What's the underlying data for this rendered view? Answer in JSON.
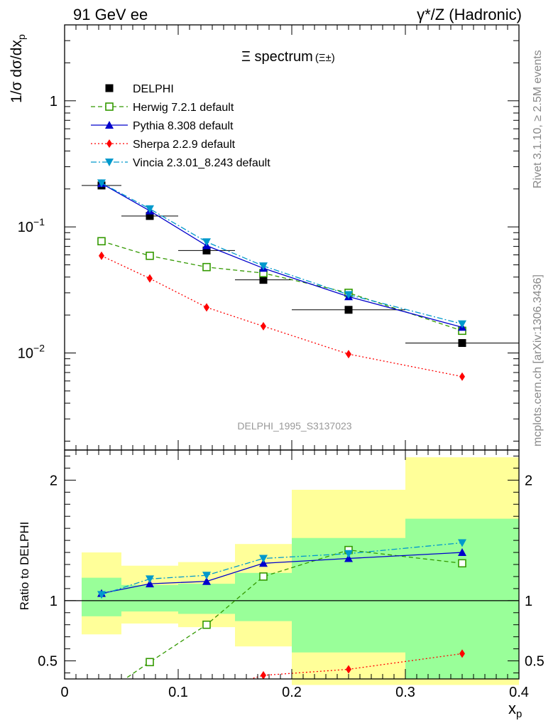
{
  "header": {
    "left": "91 GeV ee",
    "right": "γ*/Z (Hadronic)"
  },
  "side_labels": {
    "rivet": "Rivet 3.1.10, ≥ 2.5M events",
    "mcplots": "mcplots.cern.ch [arXiv:1306.3436]"
  },
  "chart_data": [
    {
      "type": "scatter",
      "panel": "main",
      "title": "Ξ spectrum",
      "title_suffix": "(Ξ±)",
      "ylabel": "1/σ dσ/dx",
      "ylabel_sub": "p",
      "yscale": "log",
      "xlim": [
        0,
        0.4
      ],
      "ylim": [
        0.0017,
        4.0
      ],
      "y_ticks": [
        {
          "value": 1,
          "label": "1"
        },
        {
          "value": 0.1,
          "label": "10",
          "exp": "−1"
        },
        {
          "value": 0.01,
          "label": "10",
          "exp": "−2"
        }
      ],
      "watermark": "DELPHI_1995_S3137023",
      "legend_position": "top-left",
      "x": [
        0.0325,
        0.075,
        0.125,
        0.175,
        0.25,
        0.35
      ],
      "series": [
        {
          "name": "DELPHI",
          "color": "#000000",
          "marker": "square-filled",
          "line": "none",
          "values": [
            0.213,
            0.122,
            0.065,
            0.038,
            0.022,
            0.012
          ],
          "x_err": [
            [
              0.015,
              0.05
            ],
            [
              0.05,
              0.1
            ],
            [
              0.1,
              0.15
            ],
            [
              0.15,
              0.2
            ],
            [
              0.2,
              0.3
            ],
            [
              0.3,
              0.4
            ]
          ]
        },
        {
          "name": "Herwig 7.2.1 default",
          "color": "#339900",
          "marker": "square-open",
          "line": "dashed",
          "values": [
            0.077,
            0.059,
            0.048,
            0.043,
            0.03,
            0.015
          ]
        },
        {
          "name": "Pythia 8.308 default",
          "color": "#0000cc",
          "marker": "triangle-up",
          "line": "solid",
          "values": [
            0.221,
            0.134,
            0.071,
            0.047,
            0.028,
            0.016
          ]
        },
        {
          "name": "Sherpa 2.2.9 default",
          "color": "#ff0000",
          "marker": "diamond",
          "line": "dotted",
          "values": [
            0.059,
            0.039,
            0.023,
            0.0163,
            0.0098,
            0.0065
          ]
        },
        {
          "name": "Vincia 2.3.01_8.243 default",
          "color": "#0099cc",
          "marker": "triangle-down",
          "line": "dashdot",
          "values": [
            0.223,
            0.139,
            0.076,
            0.049,
            0.029,
            0.017
          ]
        }
      ]
    },
    {
      "type": "scatter",
      "panel": "ratio",
      "ylabel": "Ratio to DELPHI",
      "xlabel": "x",
      "xlabel_sub": "p",
      "xlim": [
        0,
        0.4
      ],
      "ylim": [
        0.35,
        2.25
      ],
      "x_ticks": [
        {
          "value": 0,
          "label": "0"
        },
        {
          "value": 0.1,
          "label": "0.1"
        },
        {
          "value": 0.2,
          "label": "0.2"
        },
        {
          "value": 0.3,
          "label": "0.3"
        },
        {
          "value": 0.4,
          "label": "0.4"
        }
      ],
      "y_ticks": [
        {
          "value": 0.5,
          "label": "0.5"
        },
        {
          "value": 1,
          "label": "1"
        },
        {
          "value": 2,
          "label": "2"
        }
      ],
      "reference_line": 1,
      "bands": [
        {
          "x0": 0.015,
          "x1": 0.05,
          "outer": [
            0.72,
            1.4
          ],
          "inner": [
            0.87,
            1.19
          ]
        },
        {
          "x0": 0.05,
          "x1": 0.1,
          "outer": [
            0.81,
            1.29
          ],
          "inner": [
            0.91,
            1.13
          ]
        },
        {
          "x0": 0.1,
          "x1": 0.15,
          "outer": [
            0.78,
            1.32
          ],
          "inner": [
            0.89,
            1.14
          ]
        },
        {
          "x0": 0.15,
          "x1": 0.2,
          "outer": [
            0.62,
            1.47
          ],
          "inner": [
            0.83,
            1.23
          ]
        },
        {
          "x0": 0.2,
          "x1": 0.3,
          "outer": [
            0.3,
            1.92
          ],
          "inner": [
            0.57,
            1.52
          ]
        },
        {
          "x0": 0.3,
          "x1": 0.4,
          "outer": [
            0.3,
            2.19
          ],
          "inner": [
            0.3,
            1.68
          ]
        }
      ],
      "x": [
        0.0325,
        0.075,
        0.125,
        0.175,
        0.25,
        0.35
      ],
      "series": [
        {
          "name": "Herwig 7.2.1 default",
          "color": "#339900",
          "marker": "square-open",
          "line": "dashed",
          "values": [
            null,
            0.49,
            0.8,
            1.2,
            1.42,
            1.31
          ],
          "lead_in": [
            0.05,
            0.33
          ]
        },
        {
          "name": "Pythia 8.308 default",
          "color": "#0000cc",
          "marker": "triangle-up",
          "line": "solid",
          "values": [
            1.06,
            1.14,
            1.16,
            1.31,
            1.35,
            1.4
          ]
        },
        {
          "name": "Sherpa 2.2.9 default",
          "color": "#ff0000",
          "marker": "diamond",
          "line": "dotted",
          "values": [
            null,
            null,
            null,
            0.38,
            0.43,
            0.56
          ],
          "lead_in": [
            0.16,
            0.34
          ]
        },
        {
          "name": "Vincia 2.3.01_8.243 default",
          "color": "#0099cc",
          "marker": "triangle-down",
          "line": "dashdot",
          "values": [
            1.05,
            1.18,
            1.21,
            1.35,
            1.39,
            1.48
          ]
        }
      ]
    }
  ]
}
